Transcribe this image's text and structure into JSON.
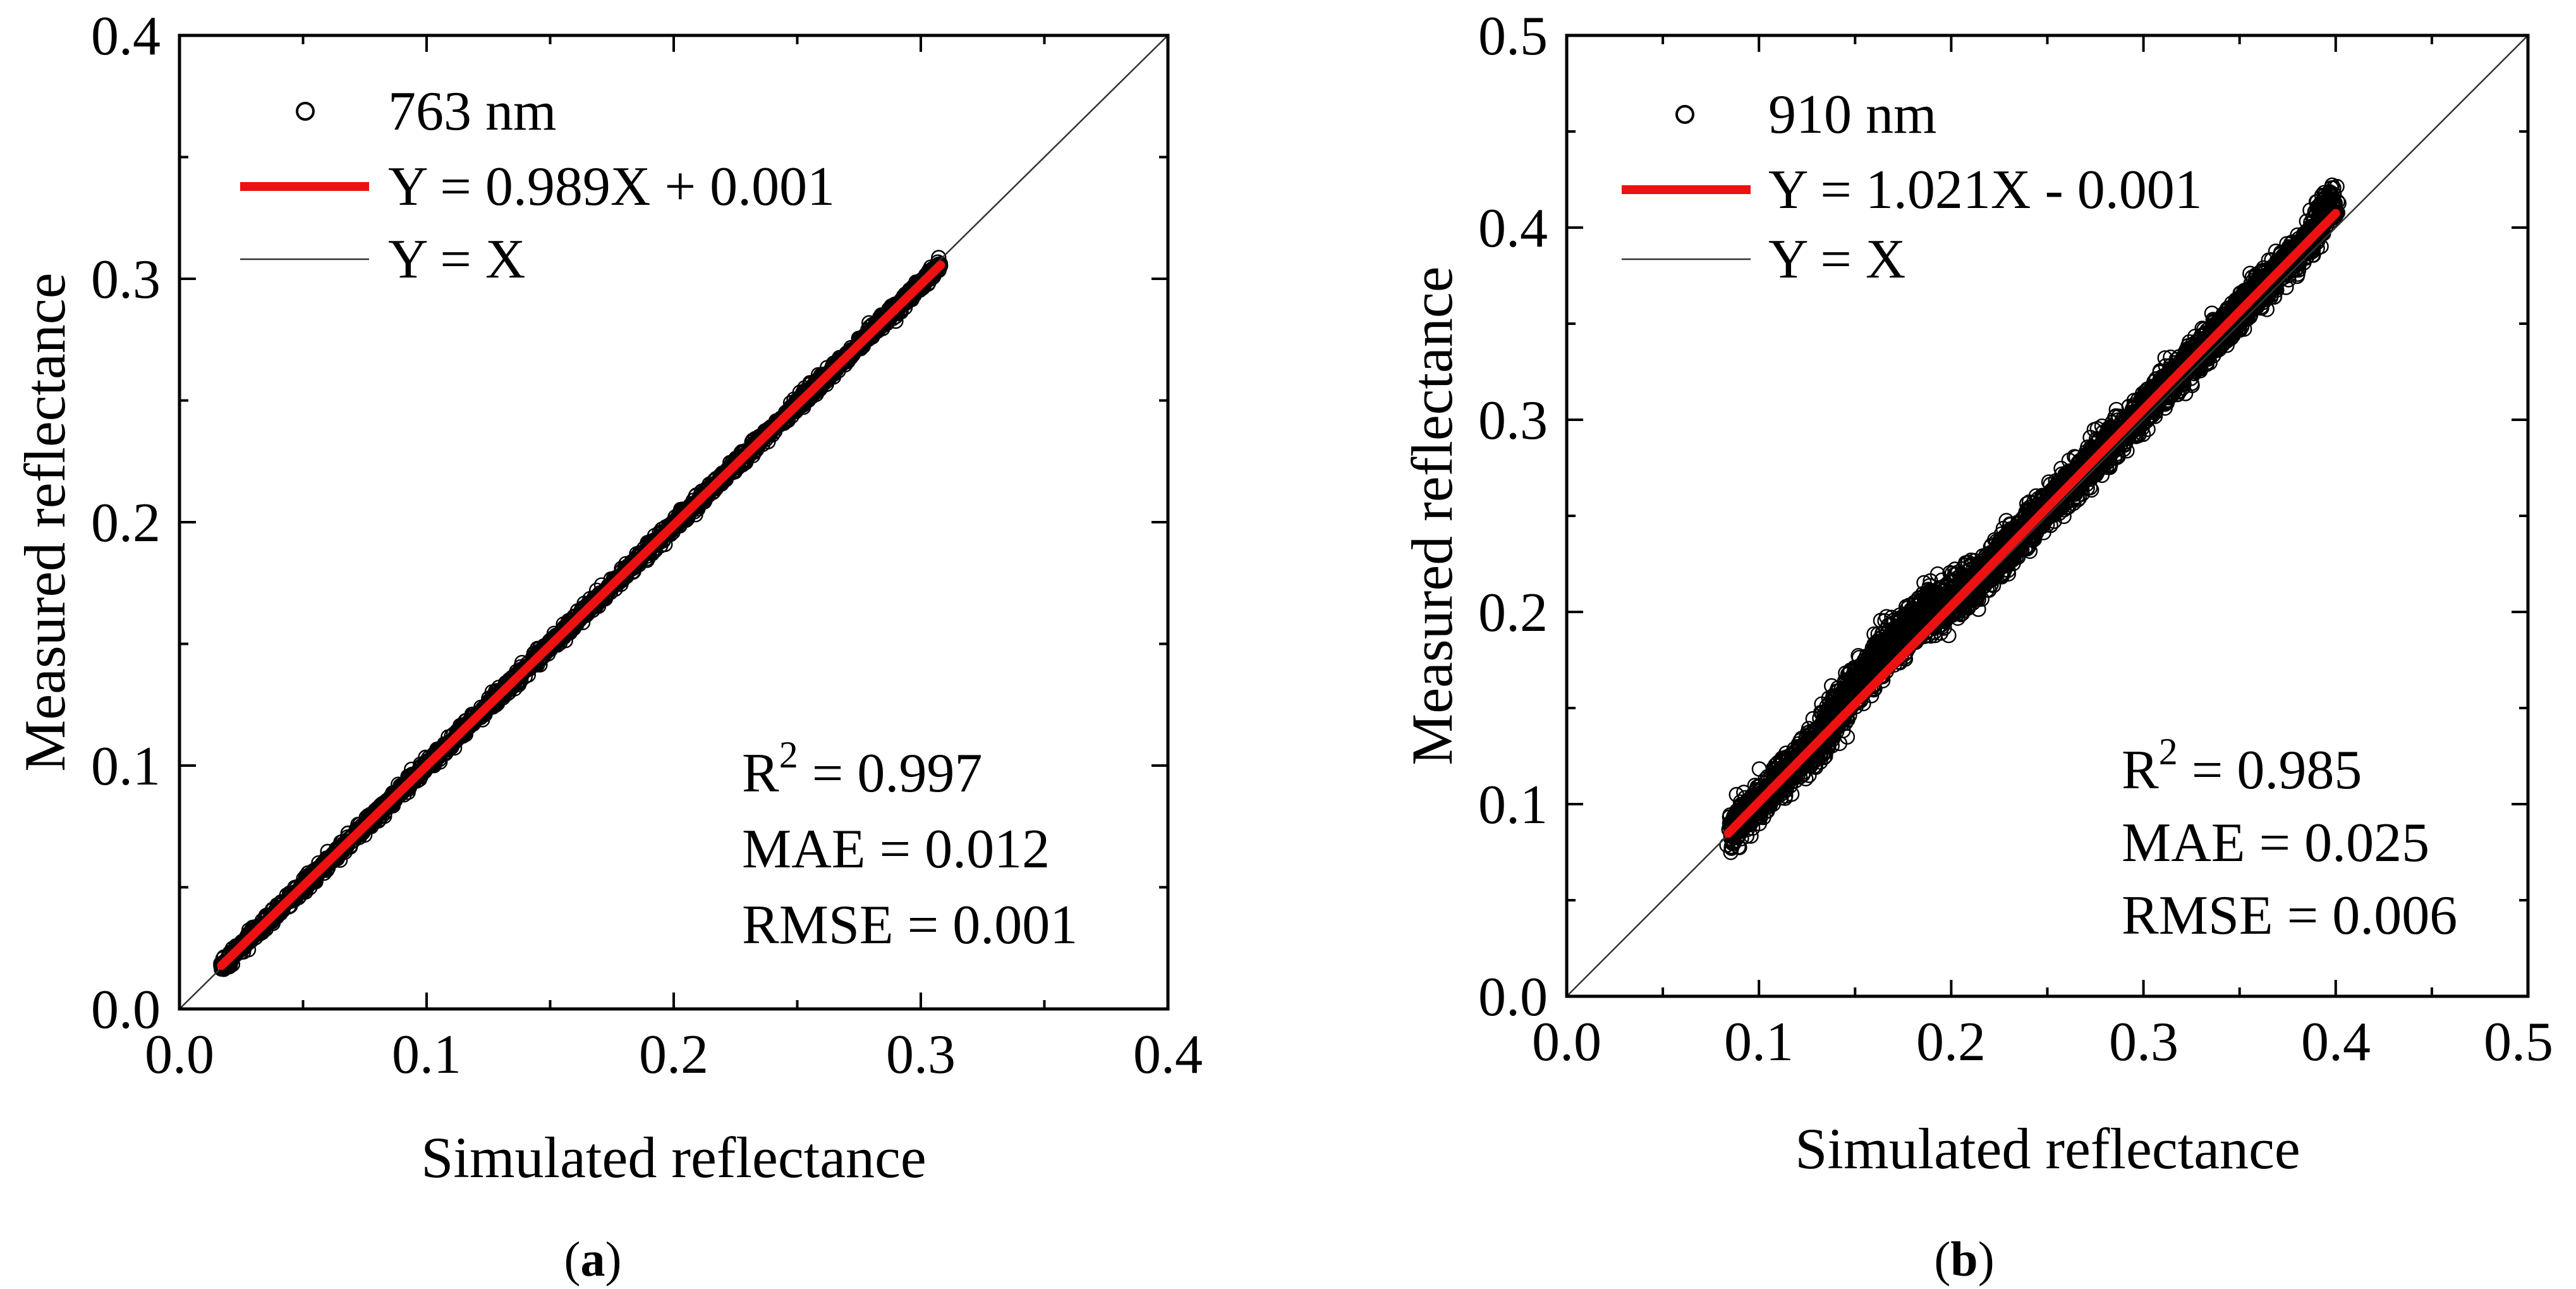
{
  "chart_data": [
    {
      "type": "scatter",
      "panel_label": "a",
      "xlabel": "Simulated reflectance",
      "ylabel": "Measured reflectance",
      "xlim": [
        0.0,
        0.4
      ],
      "ylim": [
        0.0,
        0.4
      ],
      "xticks": [
        "0.0",
        "0.1",
        "0.2",
        "0.3",
        "0.4"
      ],
      "yticks": [
        "0.0",
        "0.1",
        "0.2",
        "0.3",
        "0.4"
      ],
      "legend": [
        {
          "marker": "circle",
          "label": "763 nm"
        },
        {
          "marker": "red-line",
          "label": "Y = 0.989X + 0.001"
        },
        {
          "marker": "black-line",
          "label": "Y = X"
        }
      ],
      "stats": {
        "r2_label": "R",
        "r2_sup": "2",
        "r2_value": " = 0.997",
        "mae": "MAE = 0.012",
        "rmse": "RMSE = 0.001"
      },
      "fit": {
        "slope": 0.989,
        "intercept": 0.001,
        "x_range": [
          0.017,
          0.308
        ]
      },
      "scatter_range": [
        0.017,
        0.308
      ],
      "scatter_spread": 0.003
    },
    {
      "type": "scatter",
      "panel_label": "b",
      "xlabel": "Simulated reflectance",
      "ylabel": "Measured reflectance",
      "xlim": [
        0.0,
        0.5
      ],
      "ylim": [
        0.0,
        0.5
      ],
      "xticks": [
        "0.0",
        "0.1",
        "0.2",
        "0.3",
        "0.4",
        "0.5"
      ],
      "yticks": [
        "0.0",
        "0.1",
        "0.2",
        "0.3",
        "0.4",
        "0.5"
      ],
      "legend": [
        {
          "marker": "circle",
          "label": "910 nm"
        },
        {
          "marker": "red-line",
          "label": "Y = 1.021X - 0.001"
        },
        {
          "marker": "black-line",
          "label": "Y = X"
        }
      ],
      "stats": {
        "r2_label": "R",
        "r2_sup": "2",
        "r2_value": " = 0.985",
        "mae": "MAE = 0.025",
        "rmse": "RMSE = 0.006"
      },
      "fit": {
        "slope": 1.021,
        "intercept": -0.001,
        "x_range": [
          0.084,
          0.4
        ]
      },
      "scatter_range": [
        0.084,
        0.4
      ],
      "scatter_spread": 0.01
    }
  ],
  "colors": {
    "points": "#000000",
    "fit": "#ee1111",
    "identity": "#333333"
  }
}
